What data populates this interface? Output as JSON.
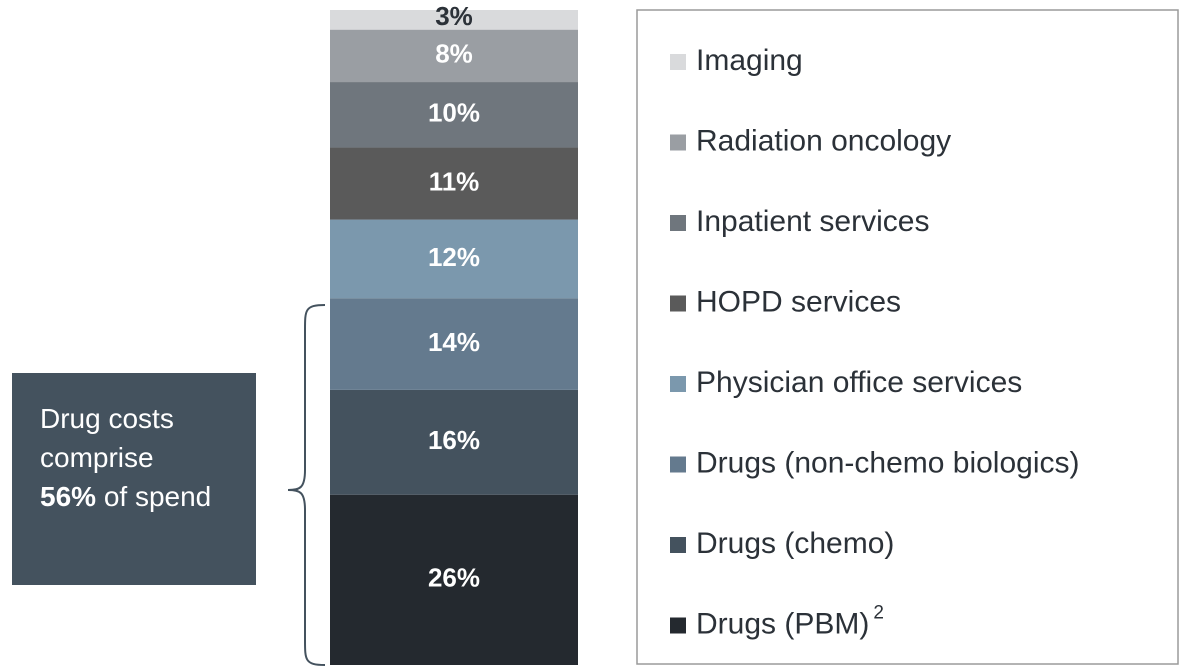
{
  "chart_data": {
    "type": "stacked_bar",
    "series": [
      {
        "name": "Drugs (PBM)",
        "footnote": "2",
        "color": "#24292f",
        "values": [
          26
        ],
        "value_labels": [
          "26%"
        ]
      },
      {
        "name": "Drugs (chemo)",
        "color": "#44525e",
        "values": [
          16
        ],
        "value_labels": [
          "16%"
        ]
      },
      {
        "name": "Drugs (non-chemo biologics)",
        "color": "#647a8e",
        "values": [
          14
        ],
        "value_labels": [
          "14%"
        ]
      },
      {
        "name": "Physician office services",
        "color": "#7b98ad",
        "values": [
          12
        ],
        "value_labels": [
          "12%"
        ]
      },
      {
        "name": "HOPD services",
        "color": "#5a5a5a",
        "values": [
          11
        ],
        "value_labels": [
          "11%"
        ]
      },
      {
        "name": "Inpatient services",
        "color": "#6f767d",
        "values": [
          10
        ],
        "value_labels": [
          "10%"
        ]
      },
      {
        "name": "Radiation oncology",
        "color": "#9a9ea3",
        "values": [
          8
        ],
        "value_labels": [
          "8%"
        ]
      },
      {
        "name": "Imaging",
        "color": "#d9dadc",
        "values": [
          3
        ],
        "value_labels": [
          "3%"
        ]
      }
    ],
    "annotation": {
      "parts": [
        "Drug costs comprise",
        "56%",
        "of spend"
      ]
    }
  }
}
